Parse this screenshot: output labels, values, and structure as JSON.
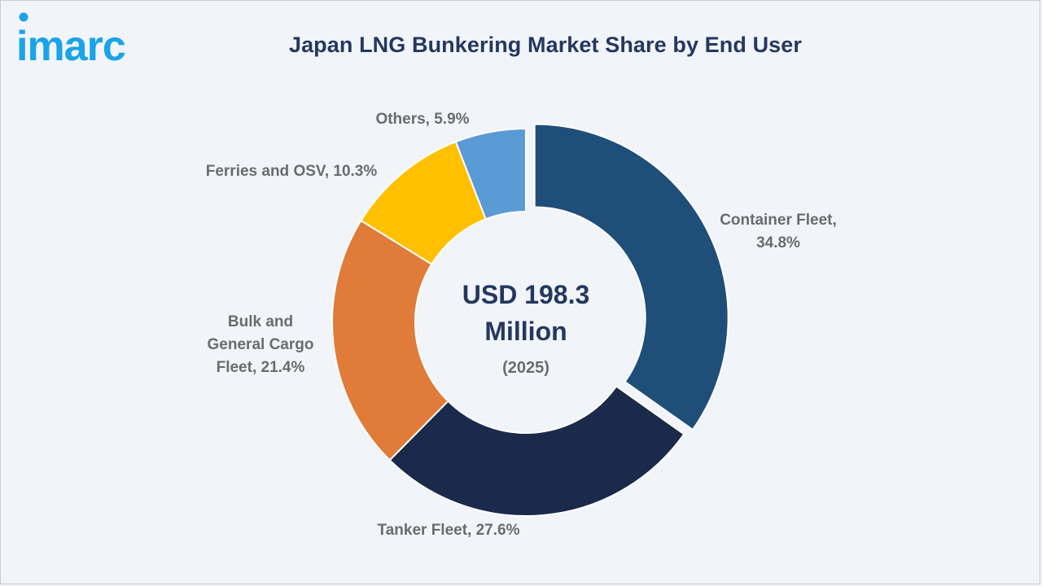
{
  "brand": {
    "logo_text": "imarc",
    "logo_color": "#1aa3e8"
  },
  "chart_data": {
    "type": "pie",
    "variant": "donut",
    "title": "Japan LNG Bunkering Market Share by End User",
    "center_value": "USD 198.3",
    "center_unit": "Million",
    "center_year": "(2025)",
    "slices": [
      {
        "name": "Container Fleet",
        "value": 34.8,
        "color": "#1f4e79",
        "exploded": true,
        "label_lines": [
          "Container Fleet,",
          "34.8%"
        ]
      },
      {
        "name": "Tanker Fleet",
        "value": 27.6,
        "color": "#1b2a4a",
        "exploded": false,
        "label_lines": [
          "Tanker Fleet, 27.6%"
        ]
      },
      {
        "name": "Bulk and General Cargo Fleet",
        "value": 21.4,
        "color": "#e07b39",
        "exploded": false,
        "label_lines": [
          "Bulk and",
          "General Cargo",
          "Fleet, 21.4%"
        ]
      },
      {
        "name": "Ferries and OSV",
        "value": 10.3,
        "color": "#ffc000",
        "exploded": false,
        "label_lines": [
          "Ferries and OSV, 10.3%"
        ]
      },
      {
        "name": "Others",
        "value": 5.9,
        "color": "#5b9bd5",
        "exploded": false,
        "label_lines": [
          "Others, 5.9%"
        ]
      }
    ]
  }
}
